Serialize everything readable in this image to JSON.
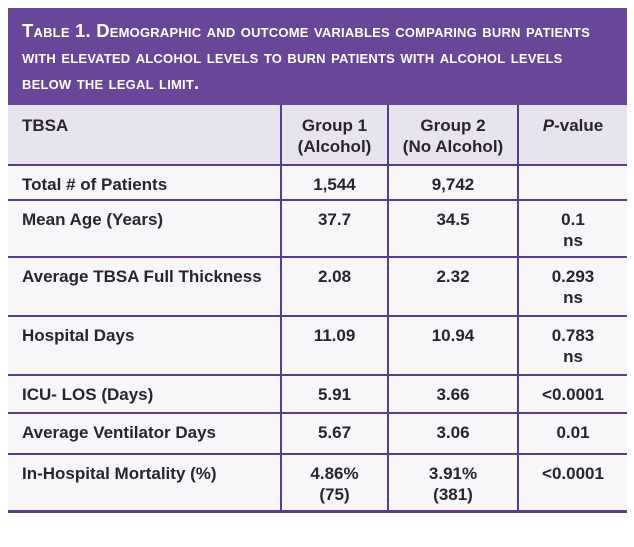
{
  "table": {
    "title": "Table 1. Demographic and outcome variables comparing burn patients with elevated alcohol levels to burn patients with alcohol levels below the legal limit.",
    "columns": {
      "col0": "TBSA",
      "col1": "Group 1\n(Alcohol)",
      "col2": "Group 2\n(No Alcohol)",
      "p_italic": "P",
      "p_rest": "-value"
    },
    "rows": [
      {
        "label": "Total # of Patients",
        "group1": "1,544",
        "group2": "9,742",
        "p": ""
      },
      {
        "label": "Mean Age (Years)",
        "group1": "37.7",
        "group2": "34.5",
        "p": "0.1\nns"
      },
      {
        "label": "Average TBSA Full Thickness",
        "group1": "2.08",
        "group2": "2.32",
        "p": "0.293\nns"
      },
      {
        "label": "Hospital Days",
        "group1": "11.09",
        "group2": "10.94",
        "p": "0.783\nns"
      },
      {
        "label": "ICU- LOS (Days)",
        "group1": "5.91",
        "group2": "3.66",
        "p": "<0.0001"
      },
      {
        "label": "Average Ventilator Days",
        "group1": "5.67",
        "group2": "3.06",
        "p": "0.01"
      },
      {
        "label": "In-Hospital Mortality (%)",
        "group1": "4.86%\n(75)",
        "group2": "3.91%\n(381)",
        "p": "<0.0001"
      }
    ]
  },
  "chart_data": {
    "type": "table",
    "title": "Table 1. Demographic and outcome variables comparing burn patients with elevated alcohol levels to burn patients with alcohol levels below the legal limit.",
    "columns": [
      "TBSA",
      "Group 1 (Alcohol)",
      "Group 2 (No Alcohol)",
      "P-value"
    ],
    "rows": [
      [
        "Total # of Patients",
        "1,544",
        "9,742",
        ""
      ],
      [
        "Mean Age (Years)",
        "37.7",
        "34.5",
        "0.1 ns"
      ],
      [
        "Average TBSA Full Thickness",
        "2.08",
        "2.32",
        "0.293 ns"
      ],
      [
        "Hospital Days",
        "11.09",
        "10.94",
        "0.783 ns"
      ],
      [
        "ICU- LOS (Days)",
        "5.91",
        "3.66",
        "<0.0001"
      ],
      [
        "Average Ventilator Days",
        "5.67",
        "3.06",
        "0.01"
      ],
      [
        "In-Hospital Mortality (%)",
        "4.86% (75)",
        "3.91% (381)",
        "<0.0001"
      ]
    ]
  },
  "colors": {
    "band": "#6A4699",
    "border": "#5B3B8C",
    "header_bg": "#E7E3EF",
    "row_bg": "#F7F6F9",
    "text": "#29242F",
    "title_text": "#FFFFFF"
  }
}
